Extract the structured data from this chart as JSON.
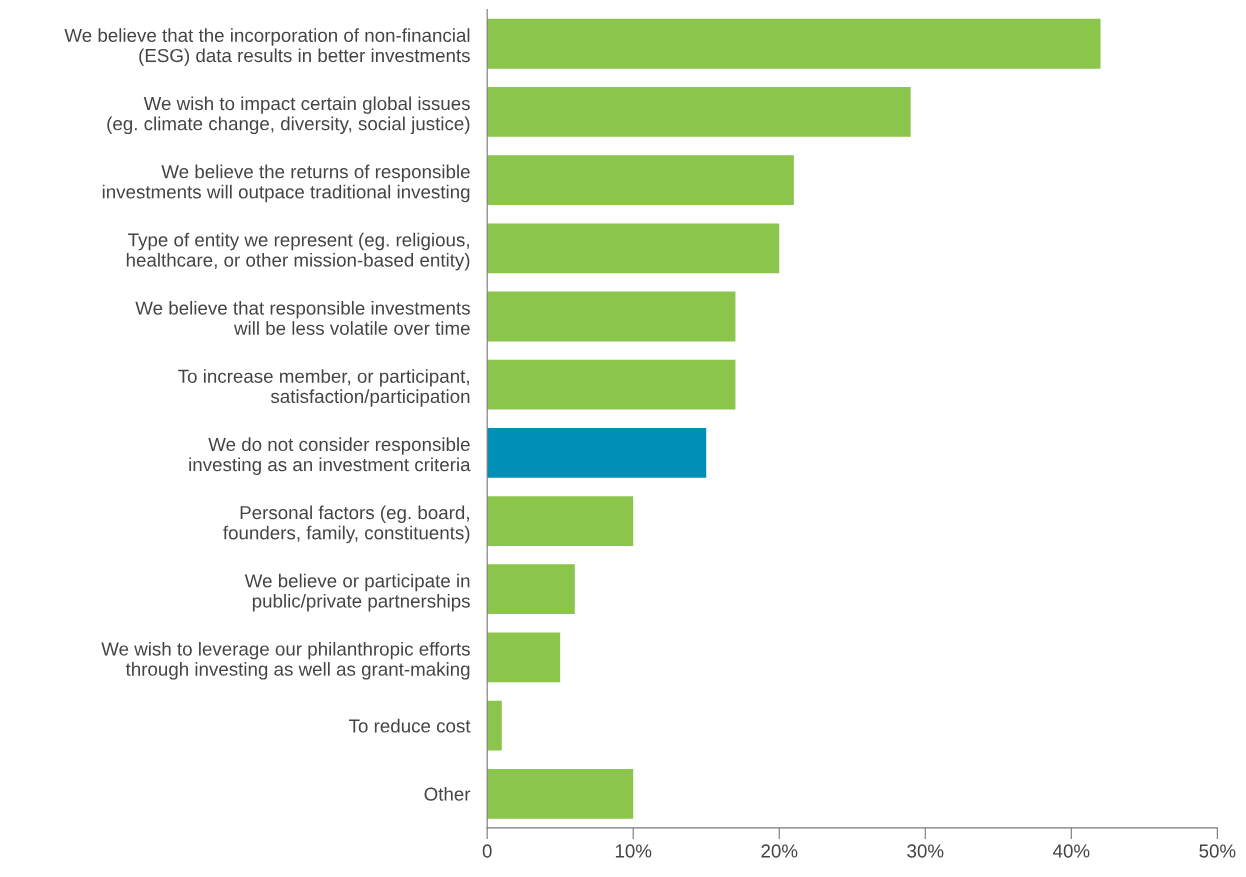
{
  "chart_data": {
    "type": "bar",
    "orientation": "horizontal",
    "categories": [
      "We believe that the incorporation of non-financial\n(ESG) data results in better investments",
      "We wish to impact certain global issues\n(eg. climate change, diversity, social justice)",
      "We believe the returns of responsible\ninvestments will outpace traditional investing",
      "Type of entity we represent (eg. religious,\nhealthcare, or other mission-based entity)",
      "We believe that responsible investments\nwill be less volatile over time",
      "To increase member, or participant,\nsatisfaction/participation",
      "We do not consider responsible\ninvesting as an investment criteria",
      "Personal factors (eg. board,\nfounders, family, constituents)",
      "We believe or participate in\npublic/private partnerships",
      "We wish to leverage our philanthropic efforts\nthrough investing as well as grant-making",
      "To reduce cost",
      "Other"
    ],
    "values": [
      42,
      29,
      21,
      20,
      17,
      17,
      15,
      10,
      6,
      5,
      1,
      10
    ],
    "colors": [
      "#8bc54b",
      "#8bc54b",
      "#8bc54b",
      "#8bc54b",
      "#8bc54b",
      "#8bc54b",
      "#0090b5",
      "#8bc54b",
      "#8bc54b",
      "#8bc54b",
      "#8bc54b",
      "#8bc54b"
    ],
    "xlim": [
      0,
      50
    ],
    "xticks": [
      0,
      {
        "value": 10,
        "label": "10%"
      },
      {
        "value": 20,
        "label": "20%"
      },
      {
        "value": 30,
        "label": "30%"
      },
      {
        "value": 40,
        "label": "40%"
      },
      {
        "value": 50,
        "label": "50%"
      }
    ],
    "grid": false,
    "legend": false
  }
}
